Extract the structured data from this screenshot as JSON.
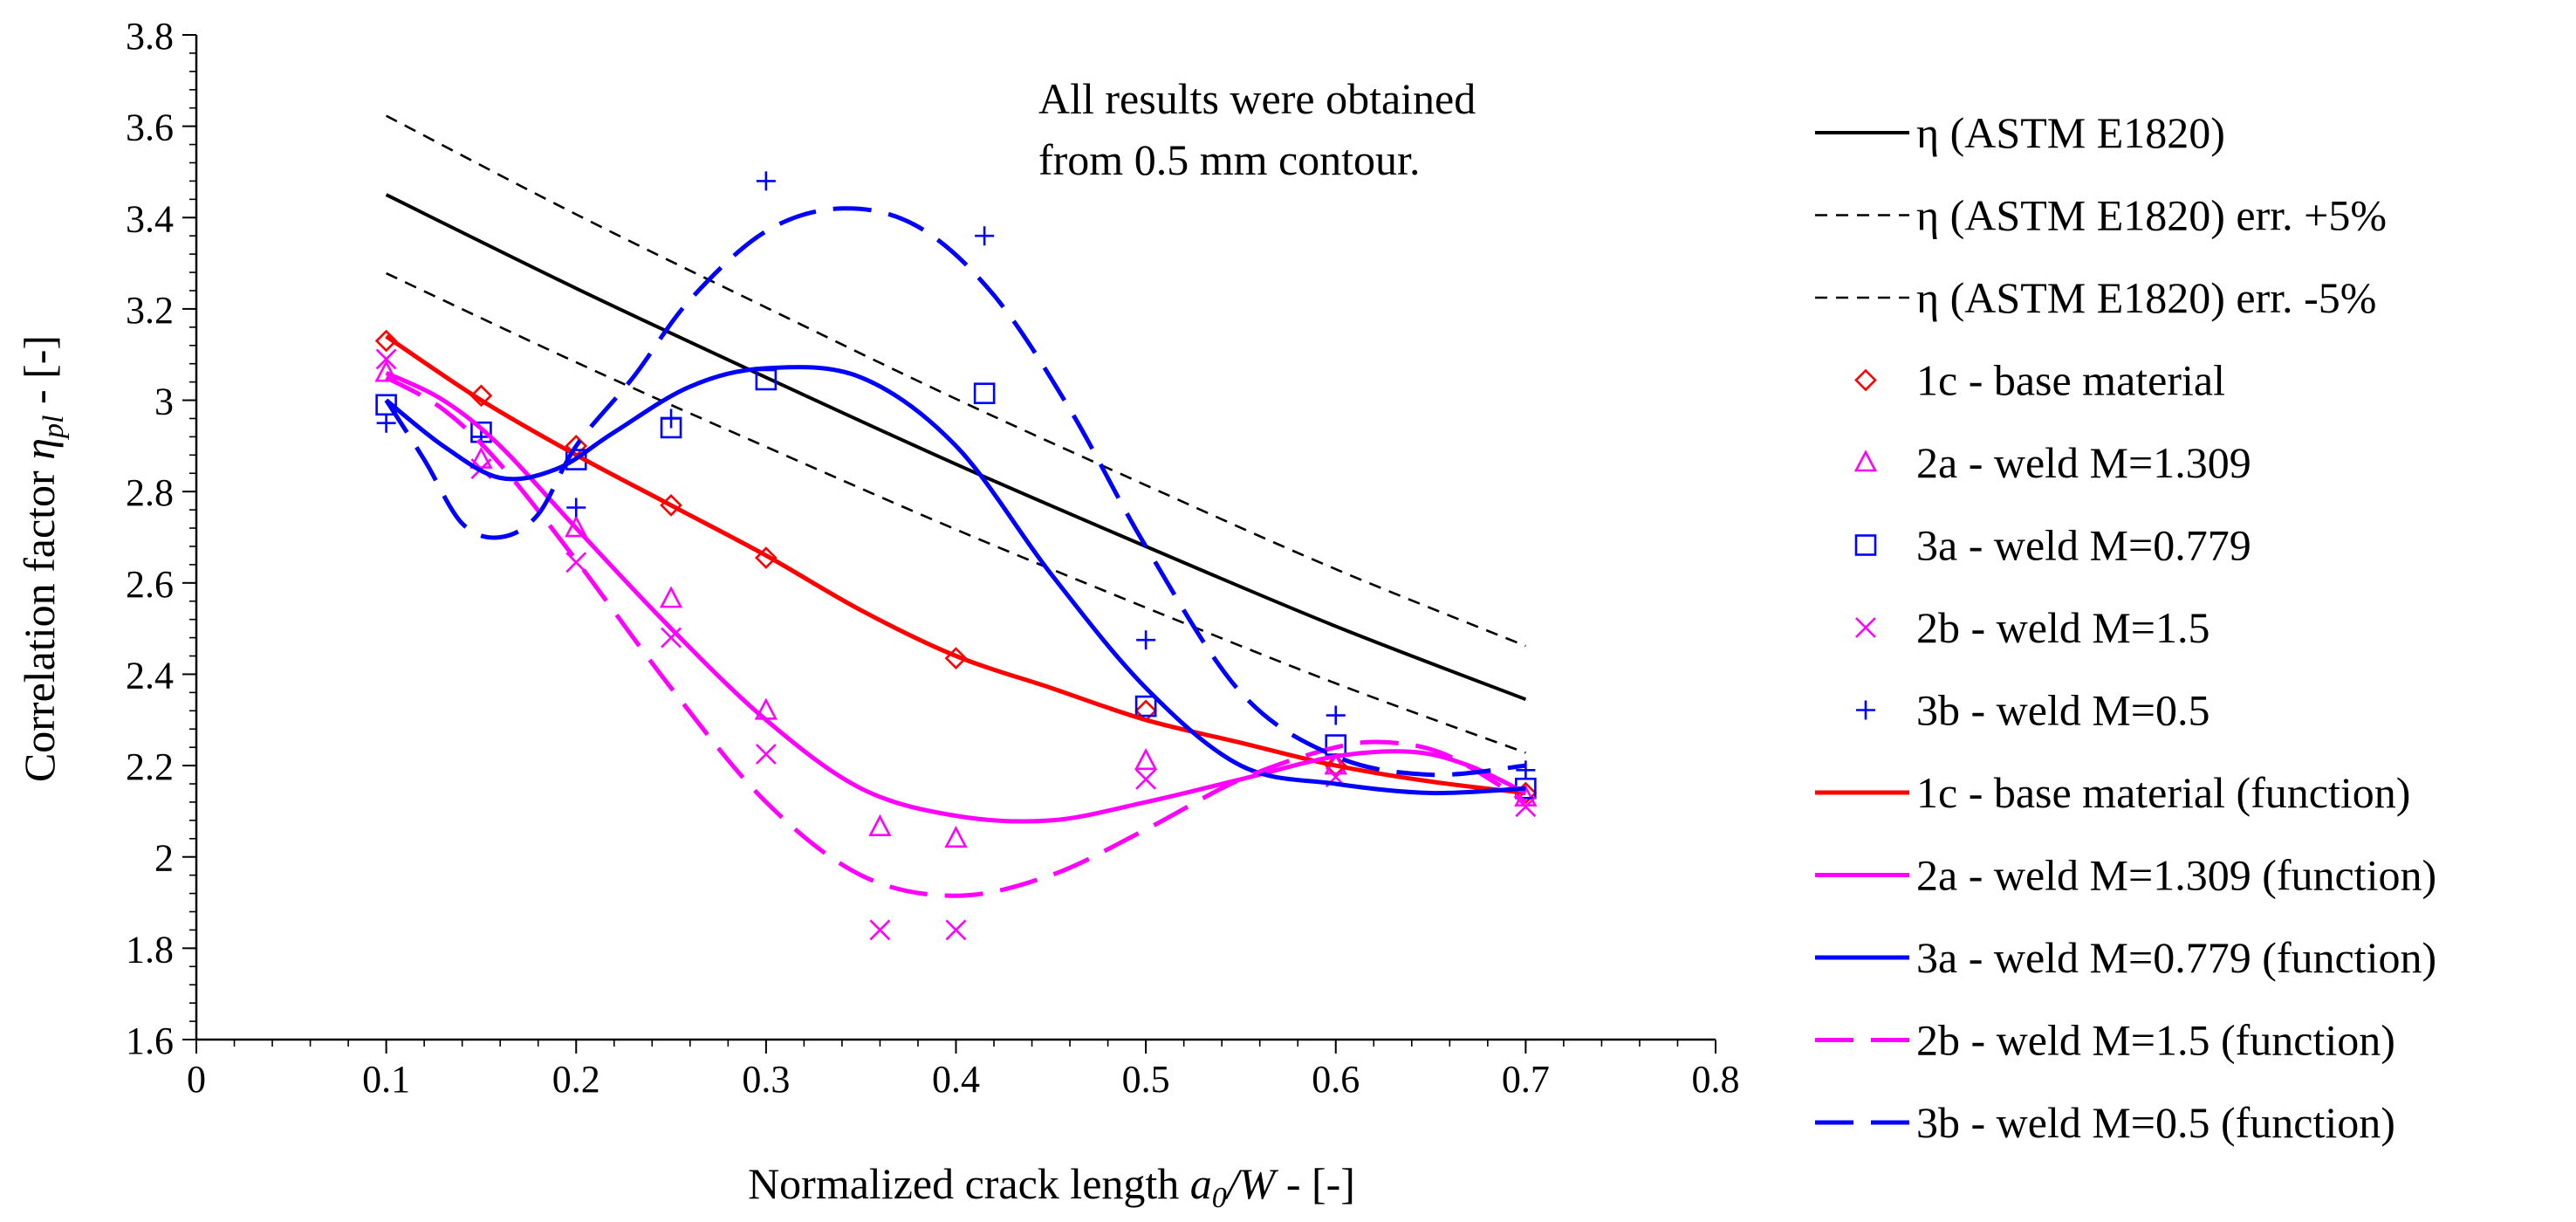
{
  "chart_data": {
    "type": "line",
    "title": "",
    "xlabel": "Normalized crack length a0/W - [-]",
    "ylabel": "Correlation factor ηpl - [-]",
    "xlim": [
      0,
      0.8
    ],
    "ylim": [
      1.6,
      3.8
    ],
    "xticks": [
      "0",
      "0.1",
      "0.2",
      "0.3",
      "0.4",
      "0.5",
      "0.6",
      "0.7",
      "0.8"
    ],
    "yticks": [
      "1.6",
      "1.8",
      "2",
      "2.2",
      "2.4",
      "2.6",
      "2.8",
      "3",
      "3.2",
      "3.4",
      "3.6",
      "3.8"
    ],
    "annotation": [
      "All results were obtained",
      "from 0.5 mm contour."
    ],
    "legend_position": "right",
    "series": [
      {
        "name": "η (ASTM E1820)",
        "kind": "line",
        "color": "#000000",
        "dash": "solid",
        "x": [
          0.1,
          0.2,
          0.3,
          0.4,
          0.5,
          0.6,
          0.7
        ],
        "y": [
          3.45,
          3.245,
          3.05,
          2.86,
          2.68,
          2.505,
          2.345
        ]
      },
      {
        "name": "η (ASTM E1820) err. +5%",
        "kind": "line",
        "color": "#000000",
        "dash": "short",
        "x": [
          0.1,
          0.2,
          0.3,
          0.4,
          0.5,
          0.6,
          0.7
        ],
        "y": [
          3.623,
          3.407,
          3.203,
          3.003,
          2.814,
          2.63,
          2.462
        ]
      },
      {
        "name": "η (ASTM E1820) err. -5%",
        "kind": "line",
        "color": "#000000",
        "dash": "short",
        "x": [
          0.1,
          0.2,
          0.3,
          0.4,
          0.5,
          0.6,
          0.7
        ],
        "y": [
          3.278,
          3.083,
          2.898,
          2.717,
          2.546,
          2.38,
          2.228
        ]
      },
      {
        "name": "1c - base material",
        "kind": "marker",
        "marker": "diamond",
        "color": "#ff0000",
        "x": [
          0.1,
          0.15,
          0.2,
          0.25,
          0.3,
          0.4,
          0.5,
          0.6,
          0.7
        ],
        "y": [
          3.13,
          3.01,
          2.9,
          2.77,
          2.655,
          2.435,
          2.32,
          2.2,
          2.14
        ]
      },
      {
        "name": "2a - weld M=1.309",
        "kind": "marker",
        "marker": "triangle",
        "color": "#ff00ff",
        "x": [
          0.1,
          0.15,
          0.2,
          0.25,
          0.3,
          0.36,
          0.4,
          0.5,
          0.6,
          0.7
        ],
        "y": [
          3.06,
          2.87,
          2.72,
          2.565,
          2.32,
          2.065,
          2.04,
          2.21,
          2.2,
          2.13
        ]
      },
      {
        "name": "3a - weld M=0.779",
        "kind": "marker",
        "marker": "square",
        "color": "#0000ff",
        "x": [
          0.1,
          0.15,
          0.2,
          0.25,
          0.3,
          0.415,
          0.5,
          0.6,
          0.7
        ],
        "y": [
          2.99,
          2.93,
          2.87,
          2.94,
          3.045,
          3.015,
          2.33,
          2.245,
          2.15
        ]
      },
      {
        "name": "2b - weld M=1.5",
        "kind": "marker",
        "marker": "cross",
        "color": "#ff00ff",
        "x": [
          0.1,
          0.15,
          0.2,
          0.25,
          0.3,
          0.36,
          0.4,
          0.5,
          0.6,
          0.7
        ],
        "y": [
          3.09,
          2.85,
          2.645,
          2.48,
          2.225,
          1.84,
          1.84,
          2.17,
          2.175,
          2.11
        ]
      },
      {
        "name": "3b - weld M=0.5",
        "kind": "marker",
        "marker": "plus",
        "color": "#0000ff",
        "x": [
          0.1,
          0.15,
          0.2,
          0.25,
          0.3,
          0.415,
          0.5,
          0.6,
          0.7
        ],
        "y": [
          2.95,
          2.92,
          2.765,
          2.96,
          3.48,
          3.36,
          2.475,
          2.31,
          2.19
        ]
      },
      {
        "name": "1c - base material (function)",
        "kind": "line",
        "color": "#ff0000",
        "dash": "solid",
        "x": [
          0.1,
          0.15,
          0.2,
          0.25,
          0.3,
          0.35,
          0.4,
          0.45,
          0.5,
          0.55,
          0.6,
          0.65,
          0.7
        ],
        "y": [
          3.14,
          3.0,
          2.88,
          2.77,
          2.66,
          2.54,
          2.44,
          2.37,
          2.3,
          2.25,
          2.2,
          2.165,
          2.14
        ]
      },
      {
        "name": "2a - weld M=1.309 (function)",
        "kind": "line",
        "color": "#ff00ff",
        "dash": "solid",
        "x": [
          0.1,
          0.13,
          0.16,
          0.2,
          0.25,
          0.3,
          0.35,
          0.4,
          0.45,
          0.5,
          0.55,
          0.6,
          0.64,
          0.67,
          0.7
        ],
        "y": [
          3.06,
          3.0,
          2.9,
          2.72,
          2.5,
          2.3,
          2.15,
          2.09,
          2.08,
          2.12,
          2.17,
          2.22,
          2.23,
          2.2,
          2.14
        ]
      },
      {
        "name": "3a - weld M=0.779 (function)",
        "kind": "line",
        "color": "#0000ff",
        "dash": "solid",
        "x": [
          0.1,
          0.13,
          0.16,
          0.19,
          0.22,
          0.26,
          0.3,
          0.35,
          0.4,
          0.45,
          0.5,
          0.55,
          0.6,
          0.65,
          0.7
        ],
        "y": [
          3.0,
          2.9,
          2.83,
          2.85,
          2.93,
          3.03,
          3.07,
          3.05,
          2.9,
          2.62,
          2.37,
          2.2,
          2.16,
          2.14,
          2.15
        ]
      },
      {
        "name": "2b - weld M=1.5 (function)",
        "kind": "line",
        "color": "#ff00ff",
        "dash": "long",
        "x": [
          0.1,
          0.13,
          0.16,
          0.2,
          0.25,
          0.3,
          0.35,
          0.4,
          0.45,
          0.5,
          0.55,
          0.6,
          0.63,
          0.66,
          0.7
        ],
        "y": [
          3.05,
          2.98,
          2.86,
          2.65,
          2.37,
          2.12,
          1.96,
          1.915,
          1.96,
          2.06,
          2.17,
          2.24,
          2.25,
          2.22,
          2.12
        ]
      },
      {
        "name": "3b - weld M=0.5 (function)",
        "kind": "line",
        "color": "#0000ff",
        "dash": "long",
        "x": [
          0.1,
          0.12,
          0.14,
          0.16,
          0.18,
          0.2,
          0.23,
          0.26,
          0.3,
          0.34,
          0.38,
          0.42,
          0.46,
          0.5,
          0.55,
          0.6,
          0.65,
          0.7
        ],
        "y": [
          3.0,
          2.87,
          2.73,
          2.7,
          2.75,
          2.9,
          3.05,
          3.22,
          3.37,
          3.42,
          3.38,
          3.23,
          2.98,
          2.68,
          2.36,
          2.22,
          2.18,
          2.2
        ]
      }
    ]
  }
}
